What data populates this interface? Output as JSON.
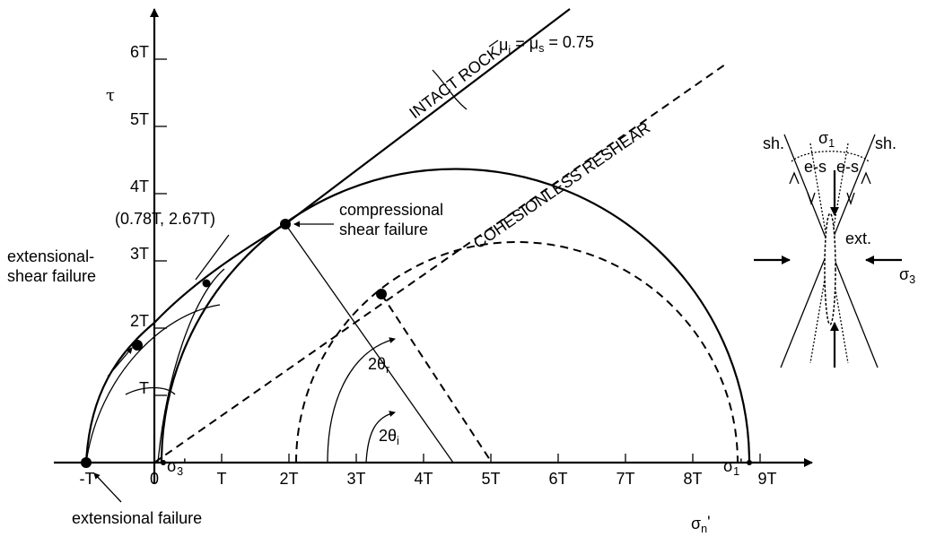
{
  "axes": {
    "y_label": "τ",
    "x_label": [
      {
        "t": "σ"
      },
      {
        "sub": "n"
      },
      {
        "t": "'"
      }
    ],
    "x_ticks": [
      "-T",
      "0",
      "T",
      "2T",
      "3T",
      "4T",
      "5T",
      "6T",
      "7T",
      "8T",
      "9T"
    ],
    "y_ticks": [
      "T",
      "2T",
      "3T",
      "4T",
      "5T",
      "6T"
    ],
    "sigma3_tick": [
      {
        "t": "σ"
      },
      {
        "sub": "3"
      },
      {
        "t": "'"
      }
    ],
    "sigma1_tick": [
      {
        "t": "σ"
      },
      {
        "sub": "1"
      },
      {
        "t": "'"
      }
    ]
  },
  "envelopes": {
    "intact": "INTACT ROCK",
    "reshear": "COHESIONLESS RESHEAR",
    "friction": [
      {
        "t": "μ"
      },
      {
        "sub": "i"
      },
      {
        "t": " = μ"
      },
      {
        "sub": "s"
      },
      {
        "t": " = 0.75"
      }
    ]
  },
  "annotations": {
    "point": "(0.78T, 2.67T)",
    "compressional": [
      "compressional",
      "shear failure"
    ],
    "extensional_shear": [
      "extensional-",
      "shear failure"
    ],
    "extensional": "extensional failure",
    "two_theta_r": [
      {
        "t": "2θ"
      },
      {
        "sub": "r"
      }
    ],
    "two_theta_i": [
      {
        "t": "2θ"
      },
      {
        "sub": "i"
      }
    ]
  },
  "inset": {
    "sigma1": [
      {
        "t": "σ"
      },
      {
        "sub": "1"
      }
    ],
    "sigma3": [
      {
        "t": "σ"
      },
      {
        "sub": "3"
      }
    ],
    "shear_left": "sh.",
    "shear_right": "sh.",
    "es_left": "e-s",
    "es_right": "e-s",
    "ext": "ext."
  }
}
